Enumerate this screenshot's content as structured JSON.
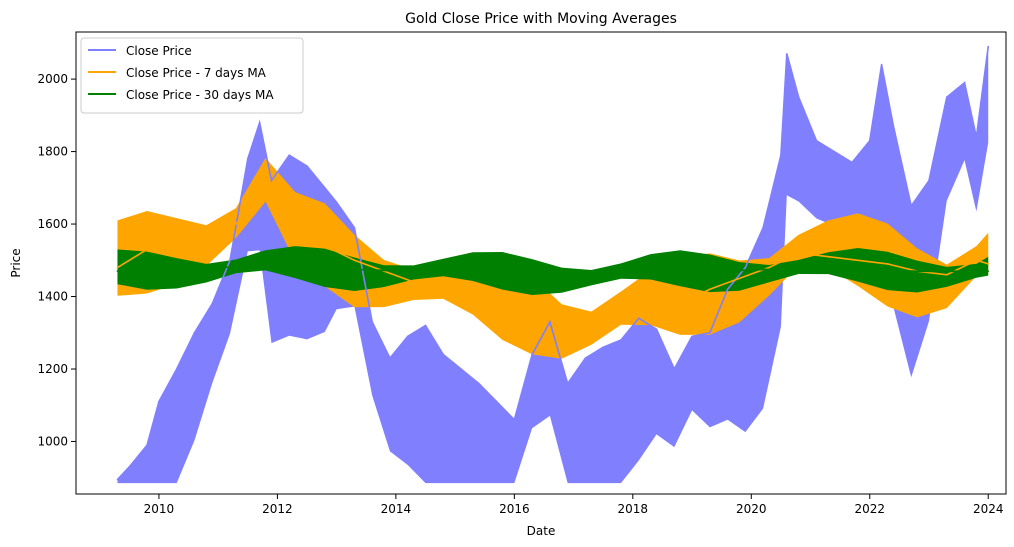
{
  "chart_data": {
    "type": "line",
    "title": "Gold Close Price with Moving Averages",
    "xlabel": "Date",
    "ylabel": "Price",
    "xlim": [
      2008.6,
      2024.3
    ],
    "ylim": [
      855,
      2130
    ],
    "xticks": [
      2010,
      2012,
      2014,
      2016,
      2018,
      2020,
      2022,
      2024
    ],
    "yticks": [
      1000,
      1200,
      1400,
      1600,
      1800,
      2000
    ],
    "grid": false,
    "legend_position": "top-left",
    "series": [
      {
        "name": "Close Price",
        "color": "#8080ff",
        "x": [
          2009.3,
          2009.5,
          2009.8,
          2010.0,
          2010.3,
          2010.6,
          2010.9,
          2011.2,
          2011.5,
          2011.7,
          2011.9,
          2012.2,
          2012.5,
          2012.8,
          2013.0,
          2013.3,
          2013.6,
          2013.9,
          2014.2,
          2014.5,
          2014.8,
          2015.1,
          2015.4,
          2015.7,
          2016.0,
          2016.3,
          2016.6,
          2016.9,
          2017.2,
          2017.5,
          2017.8,
          2018.1,
          2018.4,
          2018.7,
          2019.0,
          2019.3,
          2019.6,
          2019.9,
          2020.2,
          2020.5,
          2020.6,
          2020.8,
          2021.1,
          2021.4,
          2021.7,
          2022.0,
          2022.2,
          2022.4,
          2022.7,
          2023.0,
          2023.3,
          2023.6,
          2023.8,
          2024.0
        ],
        "y": [
          895,
          930,
          990,
          1110,
          1200,
          1300,
          1380,
          1500,
          1780,
          1880,
          1720,
          1790,
          1760,
          1700,
          1660,
          1590,
          1330,
          1230,
          1290,
          1320,
          1240,
          1200,
          1160,
          1110,
          1060,
          1240,
          1330,
          1160,
          1230,
          1260,
          1280,
          1340,
          1310,
          1200,
          1290,
          1300,
          1420,
          1480,
          1590,
          1790,
          2070,
          1950,
          1830,
          1800,
          1770,
          1830,
          2040,
          1870,
          1650,
          1720,
          1950,
          1990,
          1840,
          2090
        ]
      },
      {
        "name": "Close Price - 7 days MA",
        "color": "#ffa500",
        "x": [
          2009.3,
          2009.8,
          2010.3,
          2010.8,
          2011.3,
          2011.8,
          2012.3,
          2012.8,
          2013.3,
          2013.8,
          2014.3,
          2014.8,
          2015.3,
          2015.8,
          2016.3,
          2016.8,
          2017.3,
          2017.8,
          2018.3,
          2018.8,
          2019.3,
          2019.8,
          2020.3,
          2020.8,
          2021.3,
          2021.8,
          2022.3,
          2022.8,
          2023.3,
          2023.8,
          2024.0
        ],
        "y": [
          1480,
          1530,
          1560,
          1570,
          1600,
          1690,
          1560,
          1540,
          1500,
          1470,
          1440,
          1420,
          1400,
          1380,
          1370,
          1340,
          1330,
          1350,
          1360,
          1380,
          1420,
          1450,
          1480,
          1520,
          1510,
          1500,
          1490,
          1470,
          1460,
          1500,
          1490
        ]
      },
      {
        "name": "Close Price - 30 days MA",
        "color": "#008000",
        "x": [
          2009.3,
          2009.8,
          2010.3,
          2010.8,
          2011.3,
          2011.8,
          2012.3,
          2012.8,
          2013.3,
          2013.8,
          2014.3,
          2014.8,
          2015.3,
          2015.8,
          2016.3,
          2016.8,
          2017.3,
          2017.8,
          2018.3,
          2018.8,
          2019.3,
          2019.8,
          2020.3,
          2020.8,
          2021.3,
          2021.8,
          2022.3,
          2022.8,
          2023.3,
          2023.8,
          2024.0
        ],
        "y": [
          1470,
          1475,
          1480,
          1478,
          1482,
          1485,
          1480,
          1478,
          1475,
          1472,
          1470,
          1468,
          1466,
          1465,
          1464,
          1462,
          1460,
          1462,
          1465,
          1468,
          1470,
          1472,
          1475,
          1478,
          1476,
          1474,
          1472,
          1470,
          1469,
          1472,
          1470
        ]
      }
    ]
  }
}
